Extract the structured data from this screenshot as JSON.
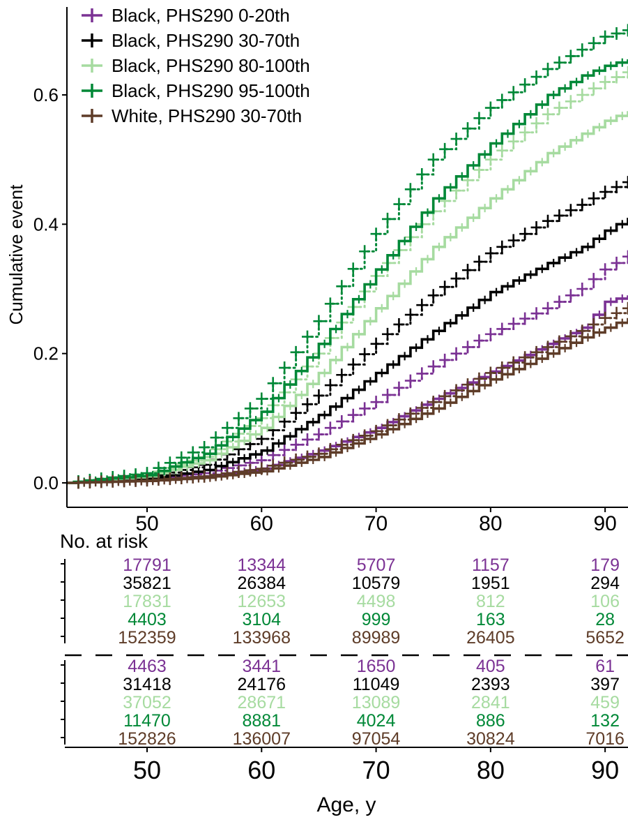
{
  "chart_data": {
    "type": "line",
    "title": "",
    "xlabel": "Age, y",
    "ylabel": "Cumulative event",
    "xlim": [
      43,
      92
    ],
    "ylim": [
      -0.015,
      0.72
    ],
    "x_ticks": [
      50,
      60,
      70,
      80,
      90
    ],
    "x_tick_labels": [
      "50",
      "60",
      "70",
      "80",
      "90"
    ],
    "y_ticks": [
      0.0,
      0.2,
      0.4,
      0.6
    ],
    "y_tick_labels": [
      "0.0",
      "0.2",
      "0.4",
      "0.6"
    ],
    "grid": false,
    "legend_position": "top-left",
    "step_style": "solid step curve with censor marks; dotted curve with plus markers for the second cohort",
    "series": [
      {
        "name": "Black, PHS290 0-20th",
        "color": "#7b3294",
        "solid": [
          [
            43,
            0
          ],
          [
            50,
            0.004
          ],
          [
            55,
            0.01
          ],
          [
            60,
            0.022
          ],
          [
            65,
            0.05
          ],
          [
            70,
            0.085
          ],
          [
            75,
            0.13
          ],
          [
            80,
            0.172
          ],
          [
            85,
            0.215
          ],
          [
            88,
            0.24
          ],
          [
            90,
            0.28
          ],
          [
            92,
            0.29
          ]
        ],
        "dotted": [
          [
            43,
            0
          ],
          [
            50,
            0.006
          ],
          [
            55,
            0.015
          ],
          [
            60,
            0.035
          ],
          [
            65,
            0.075
          ],
          [
            70,
            0.125
          ],
          [
            75,
            0.18
          ],
          [
            80,
            0.23
          ],
          [
            85,
            0.27
          ],
          [
            88,
            0.3
          ],
          [
            90,
            0.33
          ],
          [
            92,
            0.35
          ]
        ]
      },
      {
        "name": "Black, PHS290 30-70th",
        "color": "#000000",
        "solid": [
          [
            43,
            0
          ],
          [
            50,
            0.006
          ],
          [
            55,
            0.02
          ],
          [
            60,
            0.05
          ],
          [
            65,
            0.105
          ],
          [
            70,
            0.17
          ],
          [
            75,
            0.235
          ],
          [
            80,
            0.295
          ],
          [
            85,
            0.34
          ],
          [
            88,
            0.365
          ],
          [
            90,
            0.39
          ],
          [
            92,
            0.41
          ]
        ],
        "dotted": [
          [
            43,
            0
          ],
          [
            50,
            0.008
          ],
          [
            55,
            0.028
          ],
          [
            60,
            0.068
          ],
          [
            65,
            0.135
          ],
          [
            70,
            0.215
          ],
          [
            75,
            0.29
          ],
          [
            80,
            0.355
          ],
          [
            85,
            0.405
          ],
          [
            88,
            0.43
          ],
          [
            90,
            0.45
          ],
          [
            92,
            0.465
          ]
        ]
      },
      {
        "name": "Black, PHS290 80-100th",
        "color": "#a6dba0",
        "solid": [
          [
            43,
            0
          ],
          [
            50,
            0.01
          ],
          [
            55,
            0.035
          ],
          [
            60,
            0.085
          ],
          [
            65,
            0.17
          ],
          [
            70,
            0.27
          ],
          [
            75,
            0.365
          ],
          [
            80,
            0.44
          ],
          [
            85,
            0.51
          ],
          [
            88,
            0.54
          ],
          [
            90,
            0.56
          ],
          [
            92,
            0.575
          ]
        ],
        "dotted": [
          [
            43,
            0
          ],
          [
            50,
            0.012
          ],
          [
            55,
            0.04
          ],
          [
            60,
            0.1
          ],
          [
            65,
            0.2
          ],
          [
            70,
            0.32
          ],
          [
            75,
            0.42
          ],
          [
            80,
            0.5
          ],
          [
            85,
            0.57
          ],
          [
            88,
            0.6
          ],
          [
            90,
            0.62
          ],
          [
            92,
            0.635
          ]
        ]
      },
      {
        "name": "Black, PHS290 95-100th",
        "color": "#008837",
        "solid": [
          [
            43,
            0
          ],
          [
            50,
            0.012
          ],
          [
            55,
            0.045
          ],
          [
            60,
            0.11
          ],
          [
            65,
            0.215
          ],
          [
            70,
            0.33
          ],
          [
            75,
            0.44
          ],
          [
            80,
            0.525
          ],
          [
            85,
            0.6
          ],
          [
            88,
            0.63
          ],
          [
            90,
            0.645
          ],
          [
            92,
            0.655
          ]
        ],
        "dotted": [
          [
            43,
            0
          ],
          [
            50,
            0.015
          ],
          [
            55,
            0.055
          ],
          [
            60,
            0.13
          ],
          [
            65,
            0.25
          ],
          [
            70,
            0.385
          ],
          [
            75,
            0.5
          ],
          [
            80,
            0.58
          ],
          [
            85,
            0.64
          ],
          [
            88,
            0.67
          ],
          [
            90,
            0.69
          ],
          [
            92,
            0.7
          ]
        ]
      },
      {
        "name": "White, PHS290 30-70th",
        "color": "#5e3c28",
        "solid": [
          [
            43,
            0
          ],
          [
            50,
            0.003
          ],
          [
            55,
            0.008
          ],
          [
            60,
            0.018
          ],
          [
            65,
            0.04
          ],
          [
            70,
            0.075
          ],
          [
            75,
            0.115
          ],
          [
            80,
            0.16
          ],
          [
            85,
            0.2
          ],
          [
            88,
            0.225
          ],
          [
            90,
            0.24
          ],
          [
            92,
            0.255
          ]
        ],
        "dotted": [
          [
            43,
            0
          ],
          [
            50,
            0.004
          ],
          [
            55,
            0.01
          ],
          [
            60,
            0.022
          ],
          [
            65,
            0.045
          ],
          [
            70,
            0.08
          ],
          [
            75,
            0.125
          ],
          [
            80,
            0.17
          ],
          [
            85,
            0.21
          ],
          [
            88,
            0.235
          ],
          [
            90,
            0.255
          ],
          [
            92,
            0.27
          ]
        ]
      }
    ],
    "risk_table": {
      "title": "No. at risk",
      "x": [
        50,
        60,
        70,
        80,
        90
      ],
      "x_tick_labels": [
        "50",
        "60",
        "70",
        "80",
        "90"
      ],
      "blocks": [
        {
          "rows": [
            {
              "color": "#7b3294",
              "values": [
                "17791",
                "13344",
                "5707",
                "1157",
                "179"
              ]
            },
            {
              "color": "#000000",
              "values": [
                "35821",
                "26384",
                "10579",
                "1951",
                "294"
              ]
            },
            {
              "color": "#a6dba0",
              "values": [
                "17831",
                "12653",
                "4498",
                "812",
                "106"
              ]
            },
            {
              "color": "#008837",
              "values": [
                "4403",
                "3104",
                "999",
                "163",
                "28"
              ]
            },
            {
              "color": "#5e3c28",
              "values": [
                "152359",
                "133968",
                "89989",
                "26405",
                "5652"
              ]
            }
          ]
        },
        {
          "rows": [
            {
              "color": "#7b3294",
              "values": [
                "4463",
                "3441",
                "1650",
                "405",
                "61"
              ]
            },
            {
              "color": "#000000",
              "values": [
                "31418",
                "24176",
                "11049",
                "2393",
                "397"
              ]
            },
            {
              "color": "#a6dba0",
              "values": [
                "37052",
                "28671",
                "13089",
                "2841",
                "459"
              ]
            },
            {
              "color": "#008837",
              "values": [
                "11470",
                "8881",
                "4024",
                "886",
                "132"
              ]
            },
            {
              "color": "#5e3c28",
              "values": [
                "152826",
                "136007",
                "97054",
                "30824",
                "7016"
              ]
            }
          ]
        }
      ]
    }
  }
}
